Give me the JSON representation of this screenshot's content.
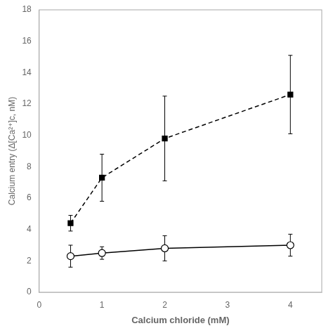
{
  "chart_data": {
    "type": "line",
    "x": [
      0.5,
      1,
      2,
      4
    ],
    "series": [
      {
        "color": "#000000",
        "marker": "square",
        "line_style": "dashed",
        "values": [
          4.4,
          7.3,
          9.8,
          12.6
        ],
        "errors": [
          0.5,
          1.5,
          2.7,
          2.5
        ]
      },
      {
        "color": "#000000",
        "marker": "circle",
        "line_style": "solid",
        "values": [
          2.3,
          2.5,
          2.8,
          3.0
        ],
        "errors": [
          0.7,
          0.4,
          0.8,
          0.7
        ]
      }
    ],
    "xlabel": "Calcium chloride (mM)",
    "ylabel": "Calcium entry (Δ[Ca²⁺]c, nM)",
    "xlim": [
      0,
      4.5
    ],
    "ylim": [
      0,
      18
    ],
    "xticks": [
      0,
      1,
      2,
      3,
      4
    ],
    "yticks": [
      0,
      2,
      4,
      6,
      8,
      10,
      12,
      14,
      16,
      18
    ],
    "grid": false
  }
}
